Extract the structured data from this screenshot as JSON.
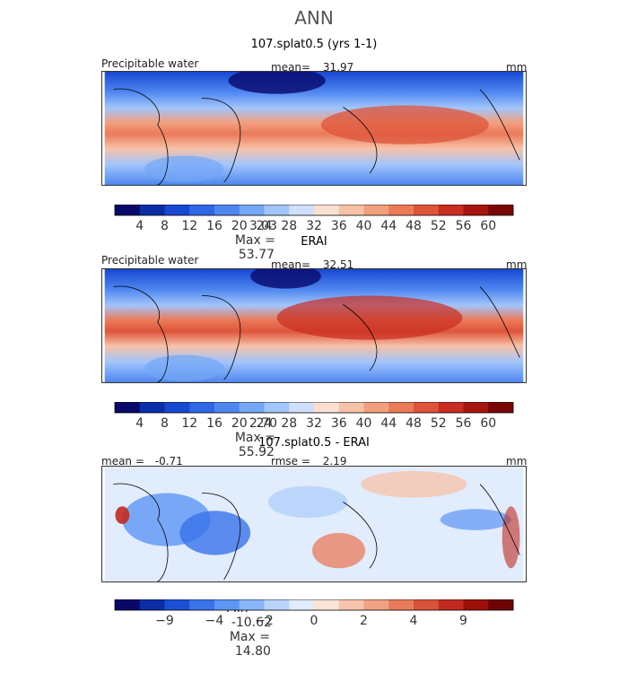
{
  "figure": {
    "title": "ANN"
  },
  "colors": {
    "abs_scale": [
      "#08086b",
      "#0b2ea8",
      "#1748d2",
      "#2f67e6",
      "#4f87f0",
      "#74a7f7",
      "#a2c5fb",
      "#cfe0fc",
      "#fbe0d2",
      "#f7c2a8",
      "#f29f7e",
      "#eb7a58",
      "#de543a",
      "#c92c21",
      "#a8150f",
      "#7a0606"
    ],
    "diff_scale": [
      "#08086b",
      "#0b2ea8",
      "#1a4fd6",
      "#3a73ea",
      "#5d96f4",
      "#89b6f9",
      "#b8d4fb",
      "#e1ecfc",
      "#fbe3d6",
      "#f6c4ab",
      "#f0a283",
      "#e87b5c",
      "#d9523b",
      "#c22a20",
      "#9c1008",
      "#6e0303"
    ]
  },
  "chart_data": [
    {
      "type": "heatmap",
      "title": "107.splat0.5 (yrs 1-1)",
      "field_label": "Precipitable water",
      "mean_label": "mean=",
      "mean_value": "31.97",
      "units": "mm",
      "min_label": "Min =",
      "min_value": "3.03",
      "max_label": "Max =",
      "max_value": "53.77",
      "colorbar_ticks": [
        "4",
        "8",
        "12",
        "16",
        "20",
        "24",
        "28",
        "32",
        "36",
        "40",
        "44",
        "48",
        "52",
        "56",
        "60"
      ]
    },
    {
      "type": "heatmap",
      "title": "ERAI",
      "field_label": "Precipitable water",
      "mean_label": "mean=",
      "mean_value": "32.51",
      "units": "mm",
      "min_label": "Min =",
      "min_value": "2.70",
      "max_label": "Max =",
      "max_value": "55.92",
      "colorbar_ticks": [
        "4",
        "8",
        "12",
        "16",
        "20",
        "24",
        "28",
        "32",
        "36",
        "40",
        "44",
        "48",
        "52",
        "56",
        "60"
      ]
    },
    {
      "type": "heatmap",
      "title": "107.splat0.5 - ERAI",
      "mean_label": "mean =",
      "mean_value": "-0.71",
      "rmse_label": "rmse =",
      "rmse_value": "2.19",
      "units": "mm",
      "min_label": "Min =",
      "min_value": "-10.62",
      "max_label": "Max =",
      "max_value": "14.80",
      "colorbar_ticks": [
        "-9",
        "-4",
        "-2",
        "0",
        "2",
        "4",
        "9"
      ]
    }
  ]
}
